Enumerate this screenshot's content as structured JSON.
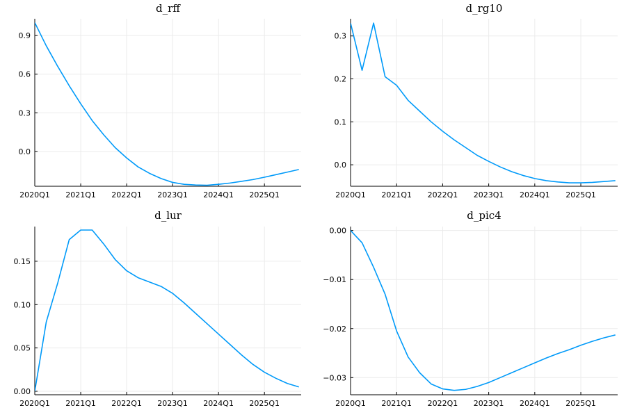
{
  "colors": {
    "series": "#009af9",
    "grid": "#ebebeb",
    "axis": "#000000"
  },
  "chart_data": [
    {
      "type": "line",
      "title": "d_rff",
      "xlabel": "",
      "ylabel": "",
      "x": [
        2020.0,
        2020.25,
        2020.5,
        2020.75,
        2021.0,
        2021.25,
        2021.5,
        2021.75,
        2022.0,
        2022.25,
        2022.5,
        2022.75,
        2023.0,
        2023.25,
        2023.5,
        2023.75,
        2024.0,
        2024.25,
        2024.5,
        2024.75,
        2025.0,
        2025.25,
        2025.5,
        2025.75
      ],
      "series": [
        {
          "values": [
            1.0,
            0.82,
            0.66,
            0.51,
            0.37,
            0.24,
            0.13,
            0.03,
            -0.05,
            -0.12,
            -0.17,
            -0.21,
            -0.24,
            -0.255,
            -0.26,
            -0.262,
            -0.255,
            -0.245,
            -0.232,
            -0.218,
            -0.2,
            -0.18,
            -0.16,
            -0.14
          ]
        }
      ],
      "xticks": [
        "2020Q1",
        "2021Q1",
        "2022Q1",
        "2023Q1",
        "2024Q1",
        "2025Q1"
      ],
      "xtick_values": [
        2020,
        2021,
        2022,
        2023,
        2024,
        2025
      ],
      "yticks": [
        "0.0",
        "0.3",
        "0.6",
        "0.9"
      ],
      "ytick_values": [
        0.0,
        0.3,
        0.6,
        0.9
      ],
      "xlim": [
        2020.0,
        2025.8
      ],
      "ylim": [
        -0.27,
        1.03
      ],
      "grid": true
    },
    {
      "type": "line",
      "title": "d_rg10",
      "xlabel": "",
      "ylabel": "",
      "x": [
        2020.0,
        2020.25,
        2020.5,
        2020.75,
        2021.0,
        2021.25,
        2021.5,
        2021.75,
        2022.0,
        2022.25,
        2022.5,
        2022.75,
        2023.0,
        2023.25,
        2023.5,
        2023.75,
        2024.0,
        2024.25,
        2024.5,
        2024.75,
        2025.0,
        2025.25,
        2025.5,
        2025.75
      ],
      "series": [
        {
          "values": [
            0.33,
            0.22,
            0.33,
            0.205,
            0.185,
            0.15,
            0.125,
            0.1,
            0.078,
            0.058,
            0.04,
            0.022,
            0.008,
            -0.005,
            -0.016,
            -0.025,
            -0.032,
            -0.037,
            -0.04,
            -0.042,
            -0.042,
            -0.041,
            -0.039,
            -0.037
          ]
        }
      ],
      "xticks": [
        "2020Q1",
        "2021Q1",
        "2022Q1",
        "2023Q1",
        "2024Q1",
        "2025Q1"
      ],
      "xtick_values": [
        2020,
        2021,
        2022,
        2023,
        2024,
        2025
      ],
      "yticks": [
        "0.0",
        "0.1",
        "0.2",
        "0.3"
      ],
      "ytick_values": [
        0.0,
        0.1,
        0.2,
        0.3
      ],
      "xlim": [
        2020.0,
        2025.8
      ],
      "ylim": [
        -0.05,
        0.34
      ],
      "grid": true
    },
    {
      "type": "line",
      "title": "d_lur",
      "xlabel": "",
      "ylabel": "",
      "x": [
        2020.0,
        2020.25,
        2020.5,
        2020.75,
        2021.0,
        2021.25,
        2021.5,
        2021.75,
        2022.0,
        2022.25,
        2022.5,
        2022.75,
        2023.0,
        2023.25,
        2023.5,
        2023.75,
        2024.0,
        2024.25,
        2024.5,
        2024.75,
        2025.0,
        2025.25,
        2025.5,
        2025.75
      ],
      "series": [
        {
          "values": [
            0.0,
            0.08,
            0.125,
            0.175,
            0.186,
            0.186,
            0.17,
            0.152,
            0.139,
            0.131,
            0.126,
            0.121,
            0.113,
            0.102,
            0.09,
            0.078,
            0.066,
            0.054,
            0.042,
            0.031,
            0.022,
            0.015,
            0.009,
            0.005
          ]
        }
      ],
      "xticks": [
        "2020Q1",
        "2021Q1",
        "2022Q1",
        "2023Q1",
        "2024Q1",
        "2025Q1"
      ],
      "xtick_values": [
        2020,
        2021,
        2022,
        2023,
        2024,
        2025
      ],
      "yticks": [
        "0.00",
        "0.05",
        "0.10",
        "0.15"
      ],
      "ytick_values": [
        0.0,
        0.05,
        0.1,
        0.15
      ],
      "xlim": [
        2020.0,
        2025.8
      ],
      "ylim": [
        -0.004,
        0.19
      ],
      "grid": true
    },
    {
      "type": "line",
      "title": "d_pic4",
      "xlabel": "",
      "ylabel": "",
      "x": [
        2020.0,
        2020.25,
        2020.5,
        2020.75,
        2021.0,
        2021.25,
        2021.5,
        2021.75,
        2022.0,
        2022.25,
        2022.5,
        2022.75,
        2023.0,
        2023.25,
        2023.5,
        2023.75,
        2024.0,
        2024.25,
        2024.5,
        2024.75,
        2025.0,
        2025.25,
        2025.5,
        2025.75
      ],
      "series": [
        {
          "values": [
            0.0,
            -0.0025,
            -0.0075,
            -0.013,
            -0.0205,
            -0.0258,
            -0.029,
            -0.0313,
            -0.0323,
            -0.0326,
            -0.0324,
            -0.0318,
            -0.031,
            -0.03,
            -0.029,
            -0.028,
            -0.027,
            -0.026,
            -0.0251,
            -0.0243,
            -0.0234,
            -0.0226,
            -0.0219,
            -0.0213
          ]
        }
      ],
      "xticks": [
        "2020Q1",
        "2021Q1",
        "2022Q1",
        "2023Q1",
        "2024Q1",
        "2025Q1"
      ],
      "xtick_values": [
        2020,
        2021,
        2022,
        2023,
        2024,
        2025
      ],
      "yticks": [
        "0.00",
        "−0.01",
        "−0.02",
        "−0.03"
      ],
      "ytick_values": [
        0.0,
        -0.01,
        -0.02,
        -0.03
      ],
      "xlim": [
        2020.0,
        2025.8
      ],
      "ylim": [
        -0.0335,
        0.0008
      ],
      "grid": true
    }
  ]
}
